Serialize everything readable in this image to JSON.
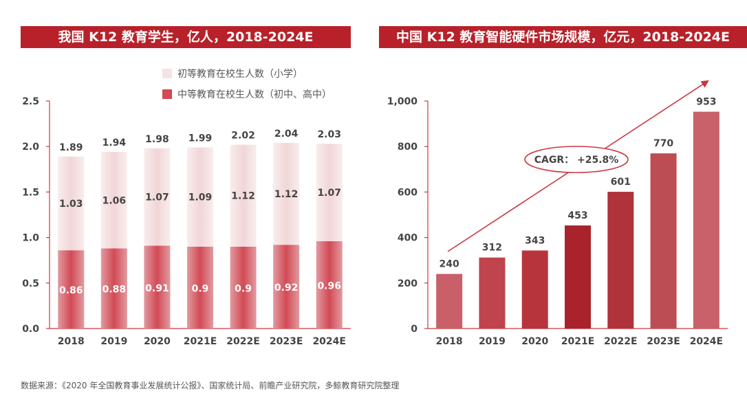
{
  "titles": {
    "left": "我国 K12 教育学生，亿人，2018-2024E",
    "right": "中国 K12 教育智能硬件市场规模，亿元，2018-2024E"
  },
  "source": "数据来源：《2020 年全国教育事业发展统计公报》、国家统计局、前瞻产业研究院，多鲸教育研究院整理",
  "chart_data": [
    {
      "type": "bar",
      "stacked": true,
      "title": "我国 K12 教育学生，亿人，2018-2024E",
      "categories": [
        "2018",
        "2019",
        "2020",
        "2021E",
        "2022E",
        "2023E",
        "2024E"
      ],
      "series": [
        {
          "name": "中等教育在校生人数（初中、高中）",
          "values": [
            0.86,
            0.88,
            0.91,
            0.9,
            0.9,
            0.92,
            0.96
          ],
          "color": "#d24a55"
        },
        {
          "name": "初等教育在校生人数（小学）",
          "values": [
            1.03,
            1.06,
            1.07,
            1.09,
            1.12,
            1.12,
            1.07
          ],
          "color": "#f6e3e4"
        }
      ],
      "totals": [
        1.89,
        1.94,
        1.98,
        1.99,
        2.02,
        2.04,
        2.03
      ],
      "yticks": [
        "0.0",
        "0.5",
        "1.0",
        "1.5",
        "2.0",
        "2.5"
      ],
      "ylim": [
        0,
        2.5
      ],
      "legend_position": "top-right"
    },
    {
      "type": "bar",
      "title": "中国 K12 教育智能硬件市场规模，亿元，2018-2024E",
      "categories": [
        "2018",
        "2019",
        "2020",
        "2021E",
        "2022E",
        "2023E",
        "2024E"
      ],
      "values": [
        240,
        312,
        343,
        453,
        601,
        770,
        953
      ],
      "yticks": [
        "0",
        "200",
        "400",
        "600",
        "800",
        "1,000"
      ],
      "ylim": [
        0,
        1000
      ],
      "annotation": "CAGR： +25.8%",
      "color": "#b82a32"
    }
  ]
}
